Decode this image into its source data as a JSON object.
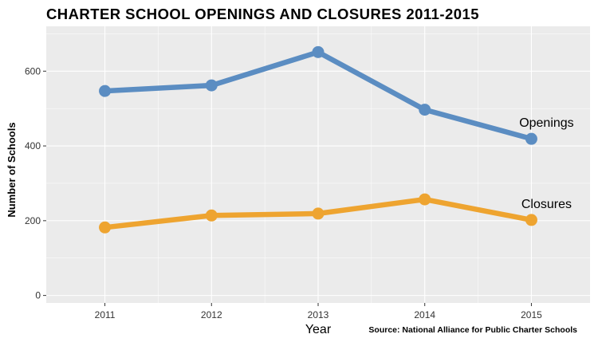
{
  "chart_data": {
    "type": "line",
    "title": "CHARTER SCHOOL OPENINGS AND CLOSURES 2011-2015",
    "xlabel": "Year",
    "ylabel": "Number of Schools",
    "x": [
      2011,
      2012,
      2013,
      2014,
      2015
    ],
    "x_tick_labels": [
      "2011",
      "2012",
      "2013",
      "2014",
      "2015"
    ],
    "xlim": [
      2010.45,
      2015.55
    ],
    "ylim": [
      -20,
      720
    ],
    "y_ticks": [
      0,
      200,
      400,
      600
    ],
    "y_tick_labels": [
      "0",
      "200",
      "400",
      "600"
    ],
    "grid": true,
    "legend": "none (direct labels at line ends)",
    "series": [
      {
        "name": "Openings",
        "values": [
          547,
          562,
          651,
          497,
          419
        ],
        "color": "#5b8dc2"
      },
      {
        "name": "Closures",
        "values": [
          182,
          214,
          219,
          257,
          202
        ],
        "color": "#eea430"
      }
    ],
    "annotations": [
      "Source: National Alliance for Public Charter Schools"
    ],
    "panel_background": "#ebebeb",
    "gridline_color": "#ffffff"
  }
}
